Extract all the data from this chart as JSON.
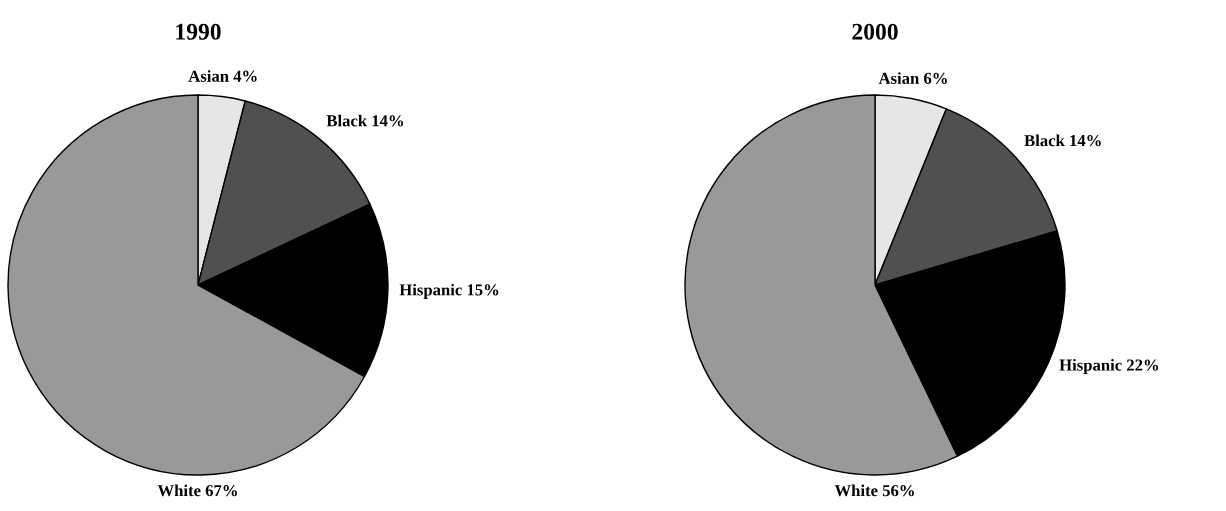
{
  "chart_data": [
    {
      "type": "pie",
      "title": "1990",
      "categories": [
        "Asian",
        "Black",
        "Hispanic",
        "White"
      ],
      "values": [
        4,
        14,
        15,
        67
      ],
      "value_labels": [
        "4%",
        "14%",
        "15%",
        "67%"
      ],
      "colors": [
        "#e6e6e6",
        "#505050",
        "#000000",
        "#999999"
      ]
    },
    {
      "type": "pie",
      "title": "2000",
      "categories": [
        "Asian",
        "Black",
        "Hispanic",
        "White"
      ],
      "values": [
        6,
        14,
        22,
        56
      ],
      "value_labels": [
        "6%",
        "14%",
        "22%",
        "56%"
      ],
      "colors": [
        "#e6e6e6",
        "#505050",
        "#000000",
        "#999999"
      ]
    }
  ]
}
